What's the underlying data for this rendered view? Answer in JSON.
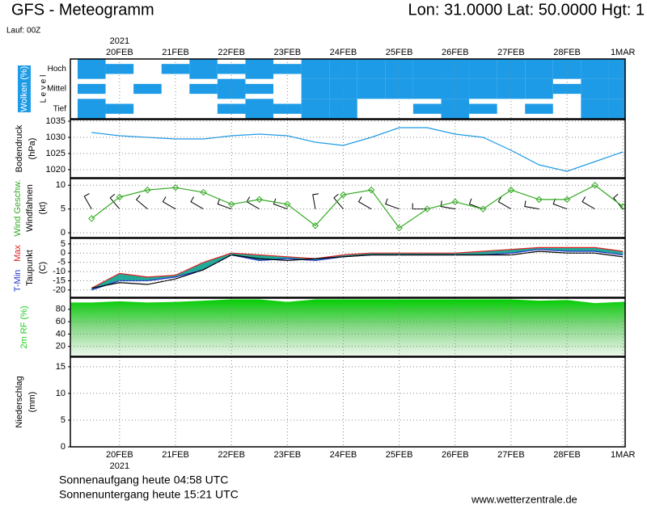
{
  "header": {
    "title": "GFS - Meteogramm",
    "location": "Lon: 31.0000 Lat: 50.0000 Hgt: 1",
    "run": "Lauf: 00Z"
  },
  "chart_data": [
    {
      "type": "band",
      "ylabel": [
        "Wolken (%)"
      ],
      "level_label": "L e v e l",
      "categories": [
        "Hoch",
        "Mittel",
        "Tief"
      ],
      "color": "#1e9be6",
      "year": "2021",
      "x": [
        0.5,
        1,
        1.5,
        2,
        2.5,
        3,
        3.5,
        4,
        4.5,
        5,
        5.5,
        6,
        6.5,
        7,
        7.5,
        8,
        8.5,
        9,
        9.5,
        10
      ],
      "values": [
        [
          100,
          50,
          0,
          50,
          100,
          50,
          100,
          50,
          100,
          100,
          100,
          100,
          100,
          100,
          100,
          100,
          100,
          100,
          100,
          100
        ],
        [
          50,
          0,
          50,
          0,
          50,
          100,
          50,
          0,
          100,
          100,
          100,
          100,
          100,
          100,
          100,
          100,
          100,
          50,
          100,
          100
        ],
        [
          100,
          50,
          0,
          0,
          0,
          50,
          100,
          50,
          100,
          100,
          0,
          0,
          50,
          100,
          50,
          0,
          50,
          0,
          100,
          100
        ]
      ],
      "xlim": [
        0.12,
        10.04
      ],
      "xticks": [
        {
          "value": 1,
          "label": "20FEB"
        },
        {
          "value": 2,
          "label": "21FEB"
        },
        {
          "value": 3,
          "label": "22FEB"
        },
        {
          "value": 4,
          "label": "23FEB"
        },
        {
          "value": 5,
          "label": "24FEB"
        },
        {
          "value": 6,
          "label": "25FEB"
        },
        {
          "value": 7,
          "label": "26FEB"
        },
        {
          "value": 8,
          "label": "27FEB"
        },
        {
          "value": 9,
          "label": "28FEB"
        },
        {
          "value": 10,
          "label": "1MAR"
        }
      ]
    },
    {
      "type": "line",
      "ylabel": [
        "Bodendruck",
        "(hPa)"
      ],
      "x": [
        0.5,
        1,
        1.5,
        2,
        2.5,
        3,
        3.5,
        4,
        4.5,
        5,
        5.5,
        6,
        6.5,
        7,
        7.5,
        8,
        8.5,
        9,
        9.5,
        10
      ],
      "series": [
        {
          "name": "Bodendruck",
          "color": "#1e9be6",
          "values": [
            1031.5,
            1030.5,
            1030,
            1029.5,
            1029.5,
            1030.5,
            1031,
            1030.5,
            1028.5,
            1027.5,
            1030,
            1033,
            1033,
            1031,
            1030,
            1026,
            1021.5,
            1019.5,
            1022.5,
            1025.5
          ]
        }
      ],
      "xlim": [
        0.12,
        10.04
      ],
      "xticks": [
        1,
        2,
        3,
        4,
        5,
        6,
        7,
        8,
        9,
        10
      ],
      "ylim": [
        1017.5,
        1035.5
      ],
      "yticks": [
        1020,
        1025,
        1030,
        1035
      ],
      "grid": true
    },
    {
      "type": "wind",
      "ylabel": [
        "(kt)"
      ],
      "x": [
        0.5,
        1,
        1.5,
        2,
        2.5,
        3,
        3.5,
        4,
        4.5,
        5,
        5.5,
        6,
        6.5,
        7,
        7.5,
        8,
        8.5,
        9,
        9.5,
        10
      ],
      "series": [
        {
          "name": "Wind Geschw.",
          "color": "#33aa22",
          "values": [
            3,
            7.5,
            9,
            9.5,
            8.5,
            6,
            7,
            6,
            1.5,
            8,
            9,
            1,
            5,
            6.5,
            5,
            9,
            7,
            7,
            10,
            5.5
          ]
        }
      ],
      "barbs": {
        "name": "Windfahnen",
        "color": "#000000",
        "values": [
          330,
          320,
          310,
          300,
          300,
          290,
          300,
          290,
          350,
          320,
          300,
          290,
          270,
          280,
          290,
          300,
          280,
          290,
          300,
          320
        ]
      },
      "xlim": [
        0.12,
        10.04
      ],
      "xticks": [
        1,
        2,
        3,
        4,
        5,
        6,
        7,
        8,
        9,
        10
      ],
      "ylim": [
        -1,
        11.4
      ],
      "yticks": [
        0,
        5,
        10
      ],
      "grid": true
    },
    {
      "type": "temperature",
      "ylabel": [
        "(C)"
      ],
      "fill_color": "#22aa99",
      "x": [
        0.5,
        1,
        1.5,
        2,
        2.5,
        3,
        3.5,
        4,
        4.5,
        5,
        5.5,
        6,
        6.5,
        7,
        7.5,
        8,
        8.5,
        9,
        9.5,
        10
      ],
      "series": [
        {
          "name": "T-Min",
          "color": "#2233cc",
          "values": [
            -20,
            -15,
            -15,
            -13,
            -9,
            -1,
            -4,
            -3,
            -4,
            -2,
            -1,
            -1,
            -1,
            -1,
            -1,
            0,
            2,
            1,
            1,
            -1
          ]
        },
        {
          "name": "Max",
          "color": "#dd2222",
          "values": [
            -19,
            -11,
            -13,
            -12,
            -5,
            0,
            -1,
            -2,
            -3,
            -1,
            0,
            0,
            0,
            0,
            1,
            2,
            3,
            3,
            3,
            1
          ]
        },
        {
          "name": "Taupunkt",
          "color": "#000000",
          "values": [
            -19,
            -16,
            -17,
            -14,
            -9,
            -1,
            -3,
            -4,
            -3,
            -2,
            -1,
            -1,
            -1,
            -1,
            -1,
            -1,
            1,
            0,
            0,
            -2
          ]
        }
      ],
      "xlim": [
        0.12,
        10.04
      ],
      "xticks": [
        1,
        2,
        3,
        4,
        5,
        6,
        7,
        8,
        9,
        10
      ],
      "ylim": [
        -24,
        8
      ],
      "yticks": [
        5,
        0,
        -5,
        -10,
        -15,
        -20
      ],
      "grid": true
    },
    {
      "type": "area",
      "ylabel": [
        "2m RF (%)"
      ],
      "color": "#22cc22",
      "x": [
        0.5,
        1,
        1.5,
        2,
        2.5,
        3,
        3.5,
        4,
        4.5,
        5,
        5.5,
        6,
        6.5,
        7,
        7.5,
        8,
        8.5,
        9,
        9.5,
        10
      ],
      "values": [
        91,
        93,
        91,
        92,
        94,
        96,
        96,
        92,
        96,
        96,
        96,
        96,
        96,
        96,
        96,
        96,
        94,
        95,
        90,
        92
      ],
      "xlim": [
        0.12,
        10.04
      ],
      "xticks": [
        1,
        2,
        3,
        4,
        5,
        6,
        7,
        8,
        9,
        10
      ],
      "ylim": [
        4,
        98
      ],
      "yticks": [
        20,
        40,
        60,
        80
      ],
      "grid": true
    },
    {
      "type": "bar",
      "ylabel": [
        "Niederschlag",
        "(mm)"
      ],
      "color": "#22aa22",
      "year": "2021",
      "x": [
        0.5,
        1,
        1.5,
        2,
        2.5,
        3,
        3.5,
        4,
        4.5,
        5,
        5.5,
        6,
        6.5,
        7,
        7.5,
        8,
        8.5,
        9,
        9.5,
        10
      ],
      "values": [
        0,
        0,
        0,
        0,
        0,
        0,
        0,
        0,
        0,
        0,
        0,
        0,
        0,
        0,
        0,
        0,
        0,
        0.1,
        0,
        0
      ],
      "xlim": [
        0.12,
        10.04
      ],
      "xticks": [
        {
          "value": 1,
          "label": "20FEB"
        },
        {
          "value": 2,
          "label": "21FEB"
        },
        {
          "value": 3,
          "label": "22FEB"
        },
        {
          "value": 4,
          "label": "23FEB"
        },
        {
          "value": 5,
          "label": "24FEB"
        },
        {
          "value": 6,
          "label": "25FEB"
        },
        {
          "value": 7,
          "label": "26FEB"
        },
        {
          "value": 8,
          "label": "27FEB"
        },
        {
          "value": 9,
          "label": "28FEB"
        },
        {
          "value": 10,
          "label": "1MAR"
        }
      ],
      "ylim": [
        0,
        16.8
      ],
      "yticks": [
        0,
        5,
        10,
        15
      ],
      "grid": true
    }
  ],
  "footer": {
    "sunrise": "Sonnenaufgang heute 04:58 UTC",
    "sunset": "Sonnenuntergang heute 15:21 UTC",
    "source": "www.wetterzentrale.de"
  }
}
